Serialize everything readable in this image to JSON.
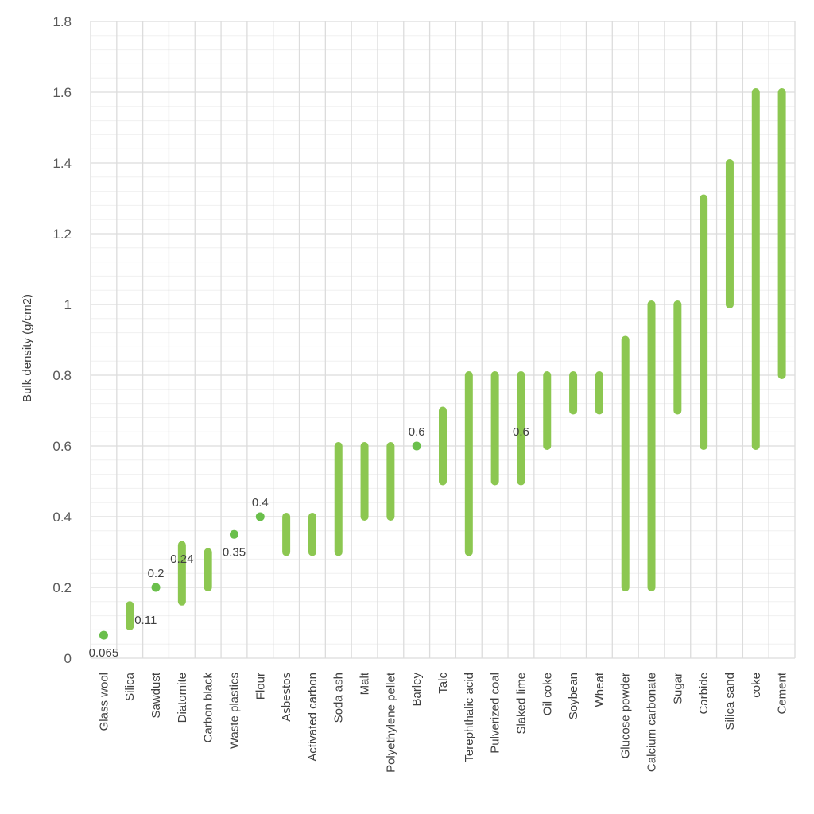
{
  "chart_data": {
    "type": "range-bar",
    "title": "",
    "xlabel": "",
    "ylabel": "Bulk density (g/cm2)",
    "ylim": [
      0,
      1.8
    ],
    "yticks": [
      "0",
      "0.2",
      "0.4",
      "0.6",
      "0.8",
      "1",
      "1.2",
      "1.4",
      "1.6",
      "1.8"
    ],
    "grid": true,
    "color": "#8cc751",
    "point_color": "#6abf4b",
    "categories": [
      "Glass wool",
      "Silica",
      "Sawdust",
      "Diatomite",
      "Carbon black",
      "Waste plastics",
      "Flour",
      "Asbestos",
      "Activated carbon",
      "Soda ash",
      "Malt",
      "Polyethylene pellet",
      "Barley",
      "Talc",
      "Terephthalic acid",
      "Pulverized coal",
      "Slaked lime",
      "Oil coke",
      "Soybean",
      "Wheat",
      "Glucose powder",
      "Calcium carbonate",
      "Sugar",
      "Carbide",
      "Silica sand",
      "coke",
      "Cement"
    ],
    "ranges": [
      [
        0.065,
        0.065
      ],
      [
        0.09,
        0.15
      ],
      [
        0.2,
        0.2
      ],
      [
        0.16,
        0.32
      ],
      [
        0.2,
        0.3
      ],
      [
        0.35,
        0.35
      ],
      [
        0.4,
        0.4
      ],
      [
        0.3,
        0.4
      ],
      [
        0.3,
        0.4
      ],
      [
        0.3,
        0.6
      ],
      [
        0.4,
        0.6
      ],
      [
        0.4,
        0.6
      ],
      [
        0.6,
        0.6
      ],
      [
        0.5,
        0.7
      ],
      [
        0.3,
        0.8
      ],
      [
        0.5,
        0.8
      ],
      [
        0.5,
        0.8
      ],
      [
        0.6,
        0.8
      ],
      [
        0.7,
        0.8
      ],
      [
        0.7,
        0.8
      ],
      [
        0.2,
        0.9
      ],
      [
        0.2,
        1.0
      ],
      [
        0.7,
        1.0
      ],
      [
        0.6,
        1.3
      ],
      [
        1.0,
        1.4
      ],
      [
        0.6,
        1.6
      ],
      [
        0.8,
        1.6
      ]
    ],
    "annotations": [
      {
        "category": "Glass wool",
        "value": 0.065,
        "text": "0.065",
        "position": "below"
      },
      {
        "category": "Silica",
        "value": 0.11,
        "text": "0.11",
        "position": "right"
      },
      {
        "category": "Sawdust",
        "value": 0.2,
        "text": "0.2",
        "position": "above"
      },
      {
        "category": "Diatomite",
        "value": 0.24,
        "text": "0.24",
        "position": "above"
      },
      {
        "category": "Waste plastics",
        "value": 0.35,
        "text": "0.35",
        "position": "below"
      },
      {
        "category": "Flour",
        "value": 0.4,
        "text": "0.4",
        "position": "above"
      },
      {
        "category": "Barley",
        "value": 0.6,
        "text": "0.6",
        "position": "above"
      },
      {
        "category": "Slaked lime",
        "value": 0.6,
        "text": "0.6",
        "position": "above"
      }
    ]
  }
}
